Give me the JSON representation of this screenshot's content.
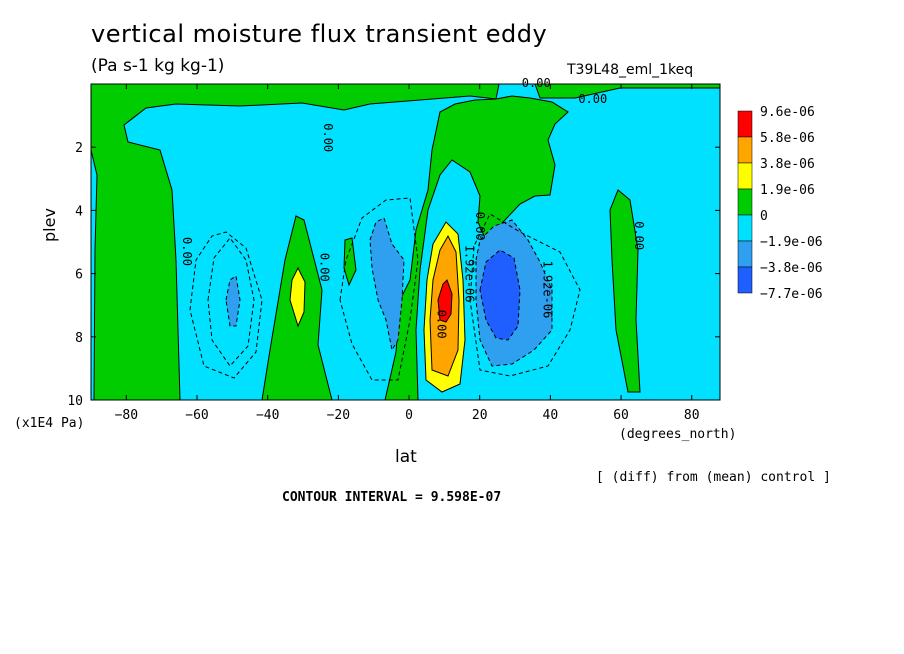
{
  "title": "vertical moisture flux transient eddy",
  "units": "(Pa s-1 kg kg-1)",
  "experiment": "T39L48_eml_1keq",
  "y_units": "(x1E4 Pa)",
  "x_units": "(degrees_north)",
  "diff_note": "[ (diff) from (mean) control ]",
  "contour_interval": "CONTOUR INTERVAL = 9.598E-07",
  "colors": {
    "c_n3": "#1f5fff",
    "c_n2": "#2f9ff0",
    "c_n1": "#00e0ff",
    "c_0": "#00cc00",
    "c_1": "#ffff00",
    "c_2": "#ffa500",
    "c_3": "#ff0000"
  },
  "chart_data": {
    "type": "heatmap",
    "title": "vertical moisture flux transient eddy",
    "xlabel": "lat",
    "ylabel": "plev",
    "xlim": [
      -90,
      88
    ],
    "ylim": [
      0,
      10
    ],
    "y_inverted": true,
    "x_ticks": [
      -80,
      -60,
      -40,
      -20,
      0,
      20,
      40,
      60,
      80
    ],
    "y_ticks": [
      2,
      4,
      6,
      8,
      10
    ],
    "colorbar": {
      "levels": [
        "9.6e-06",
        "5.8e-06",
        "3.8e-06",
        "1.9e-06",
        "0",
        "−1.9e-06",
        "−3.8e-06",
        "−7.7e-06"
      ],
      "colors": [
        "#ff0000",
        "#ffa500",
        "#ffff00",
        "#00cc00",
        "#00e0ff",
        "#2f9ff0",
        "#1f5fff"
      ]
    },
    "contour_labels": [
      {
        "text": "0.00",
        "lat": -64,
        "plev": 5.3
      },
      {
        "text": "0.00",
        "lat": -25,
        "plev": 5.8
      },
      {
        "text": "0.00",
        "lat": -24,
        "plev": 1.7
      },
      {
        "text": "0.00",
        "lat": 8,
        "plev": 7.6
      },
      {
        "text": "0.00",
        "lat": 19,
        "plev": 4.5
      },
      {
        "text": "0.00",
        "lat": 64,
        "plev": 4.8
      },
      {
        "text": "0.00",
        "lat": 36,
        "plev": 0.1
      },
      {
        "text": "0.00",
        "lat": 52,
        "plev": 0.6
      },
      {
        "text": "1.92e-06",
        "lat": 16,
        "plev": 6.0
      },
      {
        "text": "1.92e-06",
        "lat": 38,
        "plev": 6.5
      }
    ],
    "features": [
      {
        "name": "max-positive",
        "lat": 11,
        "plev": 7.0,
        "level": 3
      },
      {
        "name": "min-negative",
        "lat": 28,
        "plev": 6.7,
        "level": -3
      },
      {
        "name": "sh-positive",
        "lat": -31,
        "plev": 6.7,
        "level": 1
      },
      {
        "name": "sh-negative",
        "lat": -49,
        "plev": 7.0,
        "level": -2
      }
    ]
  }
}
